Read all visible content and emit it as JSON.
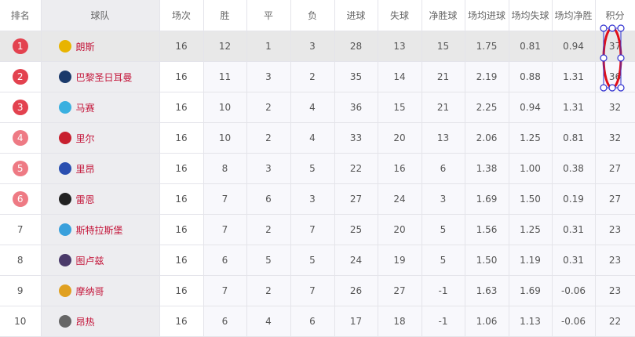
{
  "headers": [
    "排名",
    "球队",
    "场次",
    "胜",
    "平",
    "负",
    "进球",
    "失球",
    "净胜球",
    "场均进球",
    "场均失球",
    "场均净胜",
    "积分"
  ],
  "rows": [
    {
      "rank": "1",
      "team": "朗斯",
      "logo": "lens-crest-icon",
      "logo_color": "#e8b400",
      "played": "16",
      "w": "12",
      "d": "1",
      "l": "3",
      "gf": "28",
      "ga": "13",
      "gd": "15",
      "avg_gf": "1.75",
      "avg_ga": "0.81",
      "avg_gd": "0.94",
      "pts": "37"
    },
    {
      "rank": "2",
      "team": "巴黎圣日耳曼",
      "logo": "psg-crest-icon",
      "logo_color": "#1b3a6b",
      "played": "16",
      "w": "11",
      "d": "3",
      "l": "2",
      "gf": "35",
      "ga": "14",
      "gd": "21",
      "avg_gf": "2.19",
      "avg_ga": "0.88",
      "avg_gd": "1.31",
      "pts": "36"
    },
    {
      "rank": "3",
      "team": "马赛",
      "logo": "marseille-crest-icon",
      "logo_color": "#3ab0e0",
      "played": "16",
      "w": "10",
      "d": "2",
      "l": "4",
      "gf": "36",
      "ga": "15",
      "gd": "21",
      "avg_gf": "2.25",
      "avg_ga": "0.94",
      "avg_gd": "1.31",
      "pts": "32"
    },
    {
      "rank": "4",
      "team": "里尔",
      "logo": "lille-crest-icon",
      "logo_color": "#c8202f",
      "played": "16",
      "w": "10",
      "d": "2",
      "l": "4",
      "gf": "33",
      "ga": "20",
      "gd": "13",
      "avg_gf": "2.06",
      "avg_ga": "1.25",
      "avg_gd": "0.81",
      "pts": "32"
    },
    {
      "rank": "5",
      "team": "里昂",
      "logo": "lyon-crest-icon",
      "logo_color": "#2a4fb0",
      "played": "16",
      "w": "8",
      "d": "3",
      "l": "5",
      "gf": "22",
      "ga": "16",
      "gd": "6",
      "avg_gf": "1.38",
      "avg_ga": "1.00",
      "avg_gd": "0.38",
      "pts": "27"
    },
    {
      "rank": "6",
      "team": "雷恩",
      "logo": "rennes-crest-icon",
      "logo_color": "#222222",
      "played": "16",
      "w": "7",
      "d": "6",
      "l": "3",
      "gf": "27",
      "ga": "24",
      "gd": "3",
      "avg_gf": "1.69",
      "avg_ga": "1.50",
      "avg_gd": "0.19",
      "pts": "27"
    },
    {
      "rank": "7",
      "team": "斯特拉斯堡",
      "logo": "strasbourg-crest-icon",
      "logo_color": "#39a0dc",
      "played": "16",
      "w": "7",
      "d": "2",
      "l": "7",
      "gf": "25",
      "ga": "20",
      "gd": "5",
      "avg_gf": "1.56",
      "avg_ga": "1.25",
      "avg_gd": "0.31",
      "pts": "23"
    },
    {
      "rank": "8",
      "team": "图卢兹",
      "logo": "toulouse-crest-icon",
      "logo_color": "#4a3a6a",
      "played": "16",
      "w": "6",
      "d": "5",
      "l": "5",
      "gf": "24",
      "ga": "19",
      "gd": "5",
      "avg_gf": "1.50",
      "avg_ga": "1.19",
      "avg_gd": "0.31",
      "pts": "23"
    },
    {
      "rank": "9",
      "team": "摩纳哥",
      "logo": "monaco-crest-icon",
      "logo_color": "#e0a020",
      "played": "16",
      "w": "7",
      "d": "2",
      "l": "7",
      "gf": "26",
      "ga": "27",
      "gd": "-1",
      "avg_gf": "1.63",
      "avg_ga": "1.69",
      "avg_gd": "-0.06",
      "pts": "23"
    },
    {
      "rank": "10",
      "team": "昂热",
      "logo": "angers-crest-icon",
      "logo_color": "#666666",
      "played": "16",
      "w": "6",
      "d": "4",
      "l": "6",
      "gf": "17",
      "ga": "18",
      "gd": "-1",
      "avg_gf": "1.06",
      "avg_ga": "1.13",
      "avg_gd": "-0.06",
      "pts": "22"
    }
  ],
  "colors": {
    "team_name": "#c4163a",
    "badge_top": "#e3424f",
    "badge_mid": "#ee7a84",
    "annotation": "#e0101a",
    "handle": "#3030d0"
  }
}
